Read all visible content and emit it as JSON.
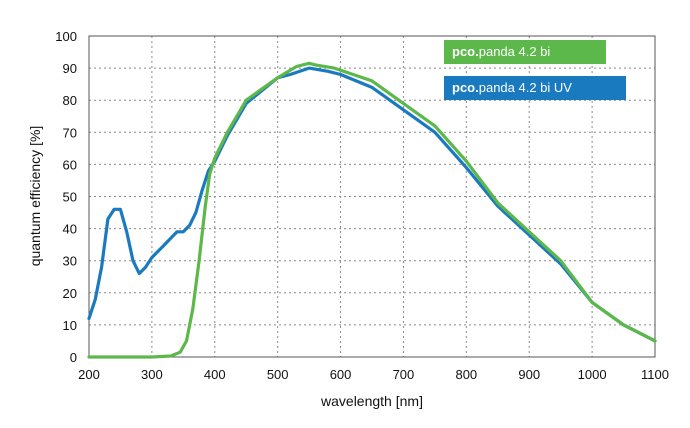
{
  "chart_data": {
    "type": "line",
    "title": "",
    "xlabel": "wavelength [nm]",
    "ylabel": "quantum efficiency [%]",
    "xlim": [
      200,
      1100
    ],
    "ylim": [
      0,
      100
    ],
    "x_ticks": [
      "200",
      "300",
      "400",
      "500",
      "600",
      "700",
      "800",
      "900",
      "1000",
      "1100"
    ],
    "y_ticks": [
      "0",
      "10",
      "20",
      "30",
      "40",
      "50",
      "60",
      "70",
      "80",
      "90",
      "100"
    ],
    "grid": true,
    "legend_position": "top-right",
    "series": [
      {
        "name": "pco.panda 4.2 bi",
        "legend_brand": "pco.",
        "legend_rest": "panda 4.2 bi",
        "color": "#5cb84a",
        "x": [
          200,
          250,
          300,
          330,
          345,
          355,
          365,
          375,
          385,
          392,
          400,
          420,
          450,
          500,
          530,
          550,
          560,
          590,
          650,
          700,
          750,
          800,
          850,
          900,
          950,
          1000,
          1050,
          1100
        ],
        "y": [
          0,
          0,
          0,
          0.3,
          1.5,
          5,
          15,
          30,
          47,
          57,
          62,
          70,
          80,
          87,
          90.5,
          91.5,
          91,
          90,
          86,
          79,
          72,
          61,
          48,
          39,
          30,
          17,
          10,
          5
        ]
      },
      {
        "name": "pco.panda 4.2 bi UV",
        "legend_brand": "pco.",
        "legend_rest": "panda 4.2 bi UV",
        "color": "#1a7ac0",
        "x": [
          200,
          210,
          220,
          230,
          240,
          250,
          260,
          270,
          280,
          290,
          300,
          320,
          340,
          350,
          360,
          370,
          380,
          390,
          400,
          420,
          450,
          500,
          520,
          550,
          580,
          600,
          650,
          700,
          750,
          800,
          850,
          900,
          950,
          1000,
          1050,
          1100
        ],
        "y": [
          12,
          18,
          28,
          43,
          46,
          46,
          39,
          30,
          26,
          28,
          31,
          35,
          39,
          39,
          41,
          45,
          52,
          58,
          61,
          69,
          79,
          87,
          88,
          90,
          89,
          88,
          84,
          77,
          70,
          59,
          47,
          38,
          29,
          17,
          10,
          5
        ]
      }
    ]
  }
}
